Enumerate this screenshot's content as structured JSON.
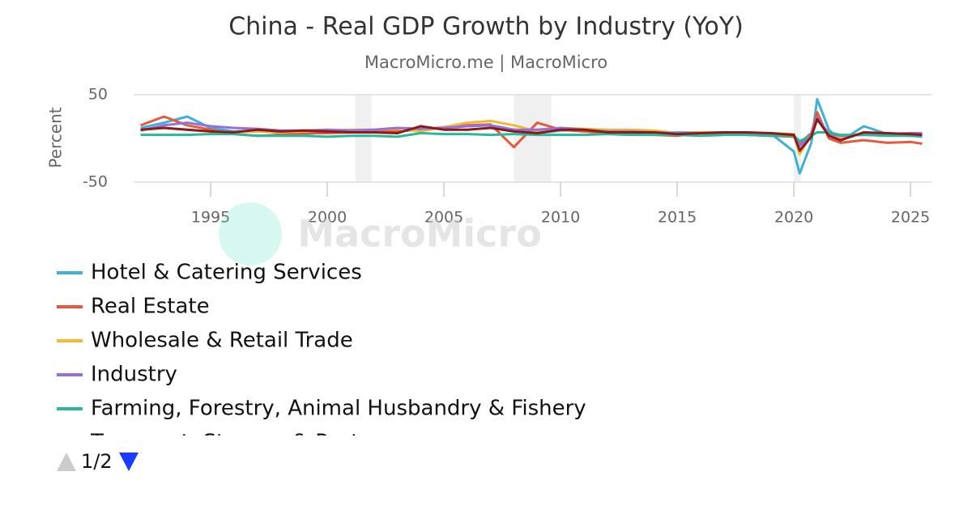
{
  "chart_data": {
    "type": "line",
    "title": "China - Real GDP Growth by Industry (YoY)",
    "subtitle": "MacroMicro.me | MacroMicro",
    "y_label": "Percent",
    "watermark": "MacroMicro",
    "legend_page": "1/2",
    "grid": true,
    "xlim": [
      1991.7,
      2025.9
    ],
    "xticks": [
      1995,
      2000,
      2005,
      2010,
      2015,
      2020,
      2025
    ],
    "ylim": [
      -50,
      50
    ],
    "yticks": [
      50,
      -50
    ],
    "shaded_ranges": [
      [
        2001.2,
        2001.9
      ],
      [
        2008.0,
        2009.6
      ],
      [
        2020.0,
        2020.3
      ]
    ],
    "x": [
      1992,
      1993,
      1994,
      1995,
      1996,
      1997,
      1998,
      1999,
      2000,
      2001,
      2002,
      2003,
      2004,
      2005,
      2006,
      2007,
      2008,
      2009,
      2010,
      2011,
      2012,
      2013,
      2014,
      2015,
      2016,
      2017,
      2018,
      2019,
      2020,
      2020.25,
      2020.75,
      2021,
      2021.5,
      2022,
      2023,
      2024,
      2025,
      2025.5
    ],
    "series": [
      {
        "name": "Hotel & Catering Services",
        "color": "#3fb0d8",
        "values": [
          12,
          18,
          25,
          12,
          8,
          9,
          6,
          5,
          7,
          9,
          10,
          8,
          10,
          12,
          14,
          15,
          10,
          6,
          9,
          10,
          8,
          6,
          6,
          7,
          7,
          7,
          6,
          6,
          -15,
          -40,
          -5,
          45,
          10,
          -3,
          14,
          5,
          3,
          2
        ]
      },
      {
        "name": "Real Estate",
        "color": "#e55a3c",
        "values": [
          15,
          25,
          15,
          10,
          5,
          3,
          4,
          6,
          6,
          7,
          8,
          9,
          10,
          13,
          15,
          16,
          -10,
          18,
          10,
          8,
          6,
          7,
          4,
          3,
          6,
          5,
          4,
          3,
          2,
          -5,
          6,
          30,
          0,
          -5,
          -2,
          -5,
          -4,
          -6
        ]
      },
      {
        "name": "Wholesale & Retail Trade",
        "color": "#f2b935",
        "values": [
          10,
          12,
          10,
          8,
          7,
          8,
          7,
          8,
          9,
          10,
          10,
          11,
          8,
          13,
          18,
          20,
          15,
          8,
          12,
          11,
          10,
          10,
          9,
          6,
          7,
          7,
          6,
          6,
          5,
          -18,
          5,
          22,
          6,
          1,
          6,
          5,
          4,
          4
        ]
      },
      {
        "name": "Industry",
        "color": "#9370db",
        "values": [
          9,
          15,
          18,
          14,
          12,
          11,
          9,
          9,
          10,
          9,
          10,
          12,
          11,
          12,
          14,
          15,
          10,
          10,
          12,
          10,
          8,
          8,
          7,
          6,
          6,
          6,
          6,
          5,
          4,
          -9,
          5,
          24,
          5,
          3,
          4,
          5,
          6,
          6
        ]
      },
      {
        "name": "Farming, Forestry, Animal Husbandry & Fishery",
        "color": "#2bb89a",
        "values": [
          4,
          4,
          4,
          5,
          5,
          3,
          3,
          3,
          2,
          3,
          3,
          2,
          6,
          5,
          5,
          4,
          5,
          4,
          4,
          4,
          5,
          4,
          4,
          4,
          3,
          4,
          4,
          3,
          3,
          -3,
          3,
          7,
          7,
          4,
          4,
          3,
          3,
          3
        ]
      },
      {
        "name": "Transport, Storage & Post",
        "color": "#8b1a1a",
        "values": [
          10,
          12,
          10,
          8,
          7,
          10,
          8,
          9,
          8,
          7,
          7,
          6,
          14,
          10,
          10,
          12,
          8,
          6,
          10,
          10,
          7,
          7,
          7,
          5,
          6,
          7,
          7,
          6,
          4,
          -14,
          2,
          22,
          3,
          -2,
          7,
          6,
          5,
          4
        ]
      }
    ]
  }
}
